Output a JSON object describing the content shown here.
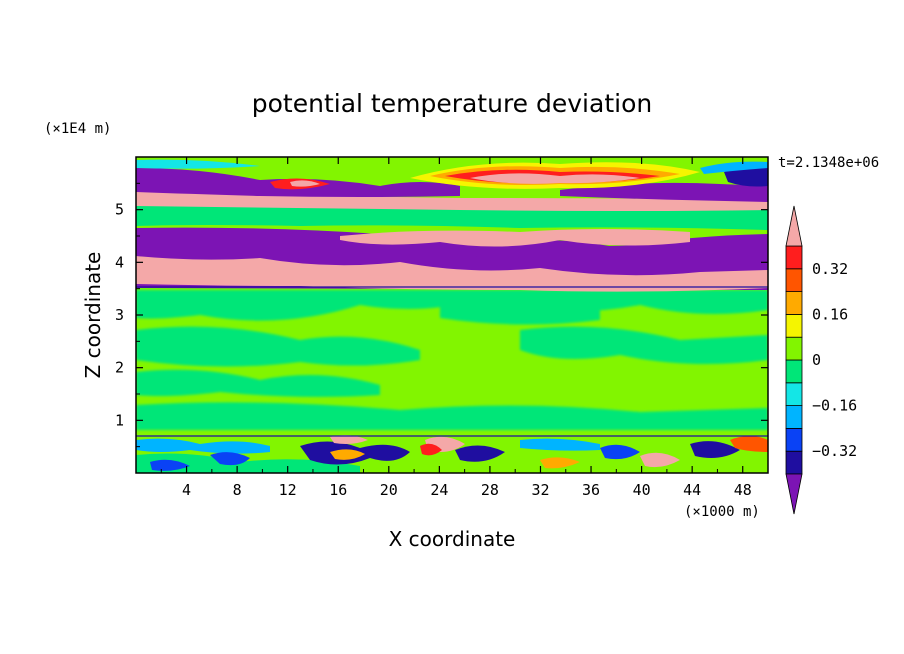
{
  "chart_data": {
    "type": "heatmap",
    "title": "potential temperature deviation",
    "xlabel": "X coordinate",
    "ylabel": "Z coordinate",
    "x_scale_label": "(×1000 m)",
    "y_scale_label": "(×1E4 m)",
    "time_label": "t=2.1348e+06",
    "xlim": [
      0,
      50
    ],
    "ylim": [
      0,
      6
    ],
    "x_ticks": [
      4,
      8,
      12,
      16,
      20,
      24,
      28,
      32,
      36,
      40,
      44,
      48
    ],
    "y_ticks": [
      1,
      2,
      3,
      4,
      5
    ],
    "colorbar": {
      "levels": [
        -0.4,
        -0.32,
        -0.24,
        -0.16,
        -0.08,
        0,
        0.08,
        0.16,
        0.24,
        0.32,
        0.4
      ],
      "labels": [
        {
          "value": 0.32,
          "text": "0.32"
        },
        {
          "value": 0.16,
          "text": "0.16"
        },
        {
          "value": 0,
          "text": "0"
        },
        {
          "value": -0.16,
          "text": "−0.16"
        },
        {
          "value": -0.32,
          "text": "−0.32"
        }
      ],
      "colors": [
        "#7c14b4",
        "#1f0ea0",
        "#0a42f5",
        "#00b4ff",
        "#14e6e6",
        "#00e678",
        "#82f500",
        "#f5f500",
        "#ffaa00",
        "#ff5500",
        "#ff1e1e",
        "#f4a8a8"
      ],
      "extend": "both"
    },
    "regions": [
      {
        "z": [
          3.45,
          6.0
        ],
        "value": "mixed large positive/negative layers"
      },
      {
        "z": [
          0.7,
          3.45
        ],
        "value": "near zero (-0.08 to 0.08)"
      },
      {
        "z": [
          0.0,
          0.7
        ],
        "value": "small-scale turbulent eddies"
      }
    ]
  }
}
